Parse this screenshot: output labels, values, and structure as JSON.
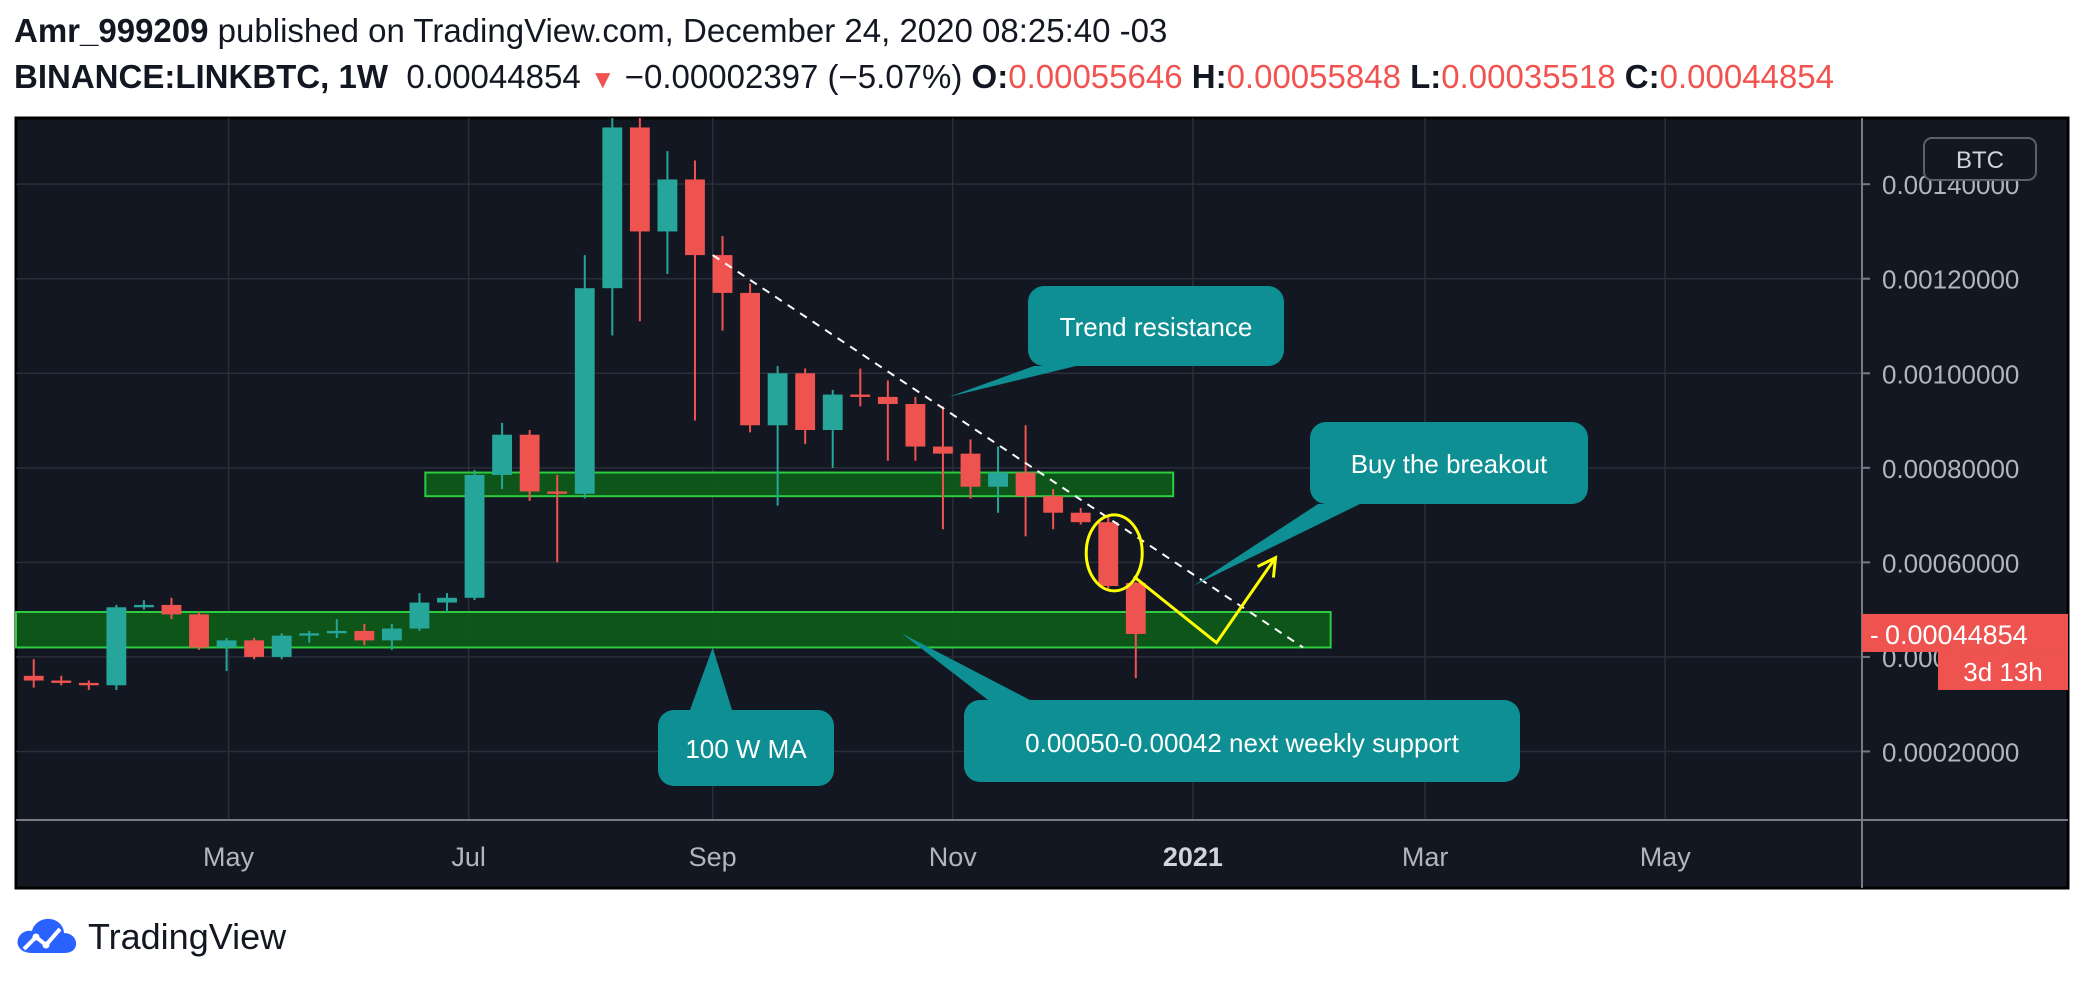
{
  "header": {
    "author": "Amr_999209",
    "published_text": "published on TradingView.com, December 24, 2020 08:25:40 -03",
    "symbol": "BINANCE:LINKBTC, 1W",
    "last_price": "0.00044854",
    "change": "−0.00002397 (−5.07%)",
    "o_label": "O:",
    "o_value": "0.00055646",
    "h_label": "H:",
    "h_value": "0.00055848",
    "l_label": "L:",
    "l_value": "0.00035518",
    "c_label": "C:",
    "c_value": "0.00044854"
  },
  "colors": {
    "background": "#131722",
    "up": "#26a69a",
    "down": "#ef5350",
    "zone_fill": "#0d5c17",
    "zone_border": "#2ecc40",
    "callout": "#0e8f93",
    "projection": "#ffff00",
    "axis_text": "#b2b5be",
    "grid": "#2a2e39"
  },
  "chart_data": {
    "type": "candlestick",
    "interval": "1W",
    "currency_label": "BTC",
    "last_price_label": "0.00044854",
    "countdown_label": "3d 13h",
    "price_ticks": [
      0.0002,
      0.0004,
      0.0006,
      0.0008,
      0.001,
      0.0012,
      0.0014
    ],
    "price_tick_labels": [
      "0.00020000",
      "0.00040000",
      "0.00060000",
      "0.00080000",
      "0.00100000",
      "0.00120000",
      "0.00140000"
    ],
    "ylim": [
      5.5e-05,
      0.00154
    ],
    "time_ticks": [
      {
        "date": "2020-05-01",
        "label": "May",
        "bold": false
      },
      {
        "date": "2020-07-01",
        "label": "Jul",
        "bold": false
      },
      {
        "date": "2020-09-01",
        "label": "Sep",
        "bold": false
      },
      {
        "date": "2020-11-01",
        "label": "Nov",
        "bold": false
      },
      {
        "date": "2021-01-01",
        "label": "2021",
        "bold": true
      },
      {
        "date": "2021-03-01",
        "label": "Mar",
        "bold": false
      },
      {
        "date": "2021-05-01",
        "label": "May",
        "bold": false
      }
    ],
    "xlim": [
      "2020-03-08",
      "2021-06-20"
    ],
    "candles": [
      {
        "t": "2020-03-09",
        "o": 0.00036,
        "h": 0.000395,
        "l": 0.000335,
        "c": 0.00035
      },
      {
        "t": "2020-03-16",
        "o": 0.00035,
        "h": 0.00036,
        "l": 0.00034,
        "c": 0.000345
      },
      {
        "t": "2020-03-23",
        "o": 0.000345,
        "h": 0.00035,
        "l": 0.00033,
        "c": 0.00034
      },
      {
        "t": "2020-03-30",
        "o": 0.00034,
        "h": 0.00051,
        "l": 0.00033,
        "c": 0.000505
      },
      {
        "t": "2020-04-06",
        "o": 0.000505,
        "h": 0.00052,
        "l": 0.0005,
        "c": 0.00051
      },
      {
        "t": "2020-04-13",
        "o": 0.00051,
        "h": 0.000525,
        "l": 0.00048,
        "c": 0.00049
      },
      {
        "t": "2020-04-20",
        "o": 0.00049,
        "h": 0.000495,
        "l": 0.000415,
        "c": 0.00042
      },
      {
        "t": "2020-04-27",
        "o": 0.00042,
        "h": 0.00044,
        "l": 0.00037,
        "c": 0.000435
      },
      {
        "t": "2020-05-04",
        "o": 0.000435,
        "h": 0.00044,
        "l": 0.000395,
        "c": 0.0004
      },
      {
        "t": "2020-05-11",
        "o": 0.0004,
        "h": 0.00045,
        "l": 0.000395,
        "c": 0.000445
      },
      {
        "t": "2020-05-18",
        "o": 0.000445,
        "h": 0.000455,
        "l": 0.00043,
        "c": 0.00045
      },
      {
        "t": "2020-05-25",
        "o": 0.00045,
        "h": 0.00048,
        "l": 0.00044,
        "c": 0.000455
      },
      {
        "t": "2020-06-01",
        "o": 0.000455,
        "h": 0.00047,
        "l": 0.000425,
        "c": 0.000435
      },
      {
        "t": "2020-06-08",
        "o": 0.000435,
        "h": 0.00047,
        "l": 0.000415,
        "c": 0.00046
      },
      {
        "t": "2020-06-15",
        "o": 0.00046,
        "h": 0.000535,
        "l": 0.000455,
        "c": 0.000515
      },
      {
        "t": "2020-06-22",
        "o": 0.000515,
        "h": 0.000535,
        "l": 0.000495,
        "c": 0.000525
      },
      {
        "t": "2020-06-29",
        "o": 0.000525,
        "h": 0.000795,
        "l": 0.00052,
        "c": 0.000785
      },
      {
        "t": "2020-07-06",
        "o": 0.000785,
        "h": 0.000895,
        "l": 0.000755,
        "c": 0.00087
      },
      {
        "t": "2020-07-13",
        "o": 0.00087,
        "h": 0.00088,
        "l": 0.00073,
        "c": 0.00075
      },
      {
        "t": "2020-07-20",
        "o": 0.00075,
        "h": 0.000785,
        "l": 0.0006,
        "c": 0.000745
      },
      {
        "t": "2020-07-27",
        "o": 0.000745,
        "h": 0.00125,
        "l": 0.000735,
        "c": 0.00118
      },
      {
        "t": "2020-08-03",
        "o": 0.00118,
        "h": 0.00154,
        "l": 0.00108,
        "c": 0.00152
      },
      {
        "t": "2020-08-10",
        "o": 0.00152,
        "h": 0.00154,
        "l": 0.00111,
        "c": 0.0013
      },
      {
        "t": "2020-08-17",
        "o": 0.0013,
        "h": 0.00147,
        "l": 0.00121,
        "c": 0.00141
      },
      {
        "t": "2020-08-24",
        "o": 0.00141,
        "h": 0.00145,
        "l": 0.0009,
        "c": 0.00125
      },
      {
        "t": "2020-08-31",
        "o": 0.00125,
        "h": 0.00129,
        "l": 0.00109,
        "c": 0.00117
      },
      {
        "t": "2020-09-07",
        "o": 0.00117,
        "h": 0.00119,
        "l": 0.000875,
        "c": 0.00089
      },
      {
        "t": "2020-09-14",
        "o": 0.00089,
        "h": 0.001015,
        "l": 0.00072,
        "c": 0.001
      },
      {
        "t": "2020-09-21",
        "o": 0.001,
        "h": 0.00101,
        "l": 0.00085,
        "c": 0.00088
      },
      {
        "t": "2020-09-28",
        "o": 0.00088,
        "h": 0.000965,
        "l": 0.0008,
        "c": 0.000955
      },
      {
        "t": "2020-10-05",
        "o": 0.000955,
        "h": 0.00101,
        "l": 0.00093,
        "c": 0.00095
      },
      {
        "t": "2020-10-12",
        "o": 0.00095,
        "h": 0.000985,
        "l": 0.000815,
        "c": 0.000935
      },
      {
        "t": "2020-10-19",
        "o": 0.000935,
        "h": 0.00095,
        "l": 0.000815,
        "c": 0.000845
      },
      {
        "t": "2020-10-26",
        "o": 0.000845,
        "h": 0.00093,
        "l": 0.00067,
        "c": 0.00083
      },
      {
        "t": "2020-11-02",
        "o": 0.00083,
        "h": 0.00086,
        "l": 0.000735,
        "c": 0.00076
      },
      {
        "t": "2020-11-09",
        "o": 0.00076,
        "h": 0.000845,
        "l": 0.000705,
        "c": 0.00079
      },
      {
        "t": "2020-11-16",
        "o": 0.00079,
        "h": 0.00089,
        "l": 0.000655,
        "c": 0.00074
      },
      {
        "t": "2020-11-23",
        "o": 0.00074,
        "h": 0.000755,
        "l": 0.00067,
        "c": 0.000705
      },
      {
        "t": "2020-11-30",
        "o": 0.000705,
        "h": 0.000715,
        "l": 0.00068,
        "c": 0.000685
      },
      {
        "t": "2020-12-07",
        "o": 0.000685,
        "h": 0.0007,
        "l": 0.000545,
        "c": 0.00055
      },
      {
        "t": "2020-12-14",
        "o": 0.00055646,
        "h": 0.00055848,
        "l": 0.00035518,
        "c": 0.00044854
      }
    ],
    "zones": [
      {
        "t_start": "2020-06-20",
        "t_end": "2020-12-27",
        "price_top": 0.00079,
        "price_bottom": 0.00074
      },
      {
        "t_start": "2020-03-08",
        "t_end": "2021-02-05",
        "price_top": 0.000495,
        "price_bottom": 0.00042
      }
    ],
    "trendline": {
      "points": [
        {
          "t": "2020-09-01",
          "price": 0.00125
        },
        {
          "t": "2021-01-29",
          "price": 0.00042
        }
      ]
    },
    "projection": [
      {
        "t": "2020-12-17",
        "price": 0.00057
      },
      {
        "t": "2021-01-07",
        "price": 0.00043
      },
      {
        "t": "2021-01-22",
        "price": 0.00061
      }
    ],
    "highlight_circle": {
      "t": "2020-12-11",
      "price": 0.00062
    },
    "annotations": [
      {
        "id": "trend",
        "text": "Trend resistance",
        "anchor": {
          "t": "2020-10-31",
          "price": 0.00095
        }
      },
      {
        "id": "breakout",
        "text": "Buy the breakout",
        "anchor": {
          "t": "2021-01-01",
          "price": 0.00055
        }
      },
      {
        "id": "ma",
        "text": "100 W MA",
        "anchor": {
          "t": "2020-09-01",
          "price": 0.00042
        }
      },
      {
        "id": "support",
        "text": "0.00050-0.00042 next weekly support",
        "anchor": {
          "t": "2020-10-19",
          "price": 0.00045
        }
      }
    ]
  },
  "footer": {
    "brand": "TradingView"
  }
}
